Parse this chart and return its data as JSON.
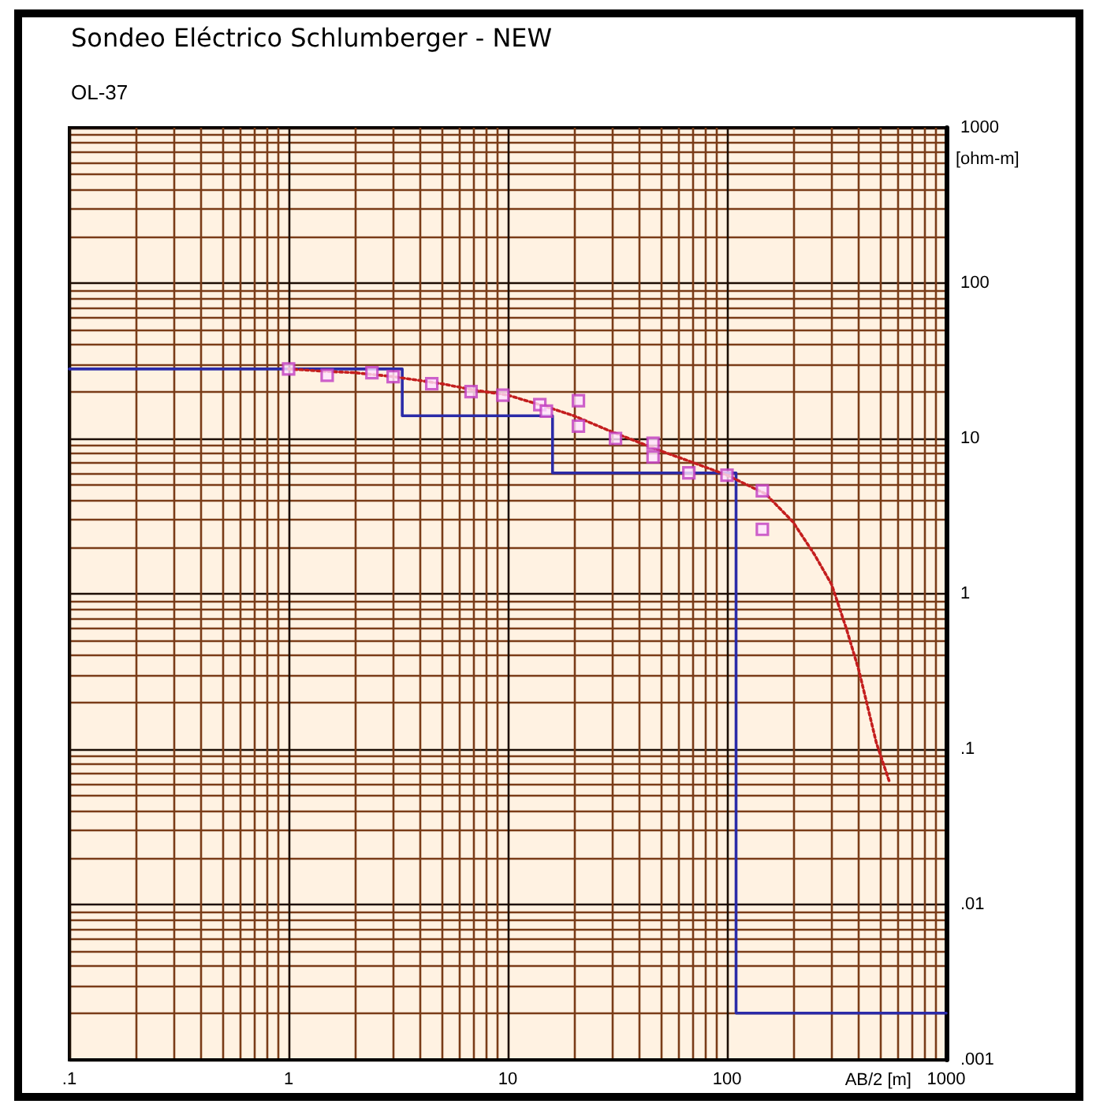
{
  "chart_data": {
    "type": "line",
    "title": "Sondeo Eléctrico Schlumberger - NEW",
    "subtitle": "OL-37",
    "xlabel": "AB/2 [m]",
    "ylabel": "[ohm-m]",
    "log": "xy",
    "grid": true,
    "xlim": [
      0.1,
      1000
    ],
    "ylim": [
      0.001,
      1000
    ],
    "xticks": [
      {
        "value": 0.1,
        "label": ".1"
      },
      {
        "value": 0.2,
        "label": null
      },
      {
        "value": 0.3,
        "label": null
      },
      {
        "value": 0.4,
        "label": null
      },
      {
        "value": 0.5,
        "label": null
      },
      {
        "value": 0.6,
        "label": null
      },
      {
        "value": 0.7,
        "label": null
      },
      {
        "value": 0.8,
        "label": null
      },
      {
        "value": 0.9,
        "label": null
      },
      1,
      {
        "value": 2,
        "label": null
      },
      {
        "value": 3,
        "label": null
      },
      {
        "value": 4,
        "label": null
      },
      {
        "value": 5,
        "label": null
      },
      {
        "value": 6,
        "label": null
      },
      {
        "value": 7,
        "label": null
      },
      {
        "value": 8,
        "label": null
      },
      {
        "value": 9,
        "label": null
      },
      10,
      {
        "value": 20,
        "label": null
      },
      {
        "value": 30,
        "label": null
      },
      {
        "value": 40,
        "label": null
      },
      {
        "value": 50,
        "label": null
      },
      {
        "value": 60,
        "label": null
      },
      {
        "value": 70,
        "label": null
      },
      {
        "value": 80,
        "label": null
      },
      {
        "value": 90,
        "label": null
      },
      100,
      {
        "value": 200,
        "label": null
      },
      {
        "value": 300,
        "label": null
      },
      {
        "value": 400,
        "label": null
      },
      {
        "value": 500,
        "label": null
      },
      {
        "value": 600,
        "label": null
      },
      {
        "value": 700,
        "label": null
      },
      {
        "value": 800,
        "label": null
      },
      {
        "value": 900,
        "label": null
      },
      1000
    ],
    "yticks": [
      {
        "value": 0.001,
        "label": ".001"
      },
      {
        "value": 0.002,
        "label": null
      },
      {
        "value": 0.003,
        "label": null
      },
      {
        "value": 0.004,
        "label": null
      },
      {
        "value": 0.005,
        "label": null
      },
      {
        "value": 0.006,
        "label": null
      },
      {
        "value": 0.007,
        "label": null
      },
      {
        "value": 0.008,
        "label": null
      },
      {
        "value": 0.009,
        "label": null
      },
      {
        "value": 0.01,
        "label": ".01"
      },
      {
        "value": 0.02,
        "label": null
      },
      {
        "value": 0.03,
        "label": null
      },
      {
        "value": 0.04,
        "label": null
      },
      {
        "value": 0.05,
        "label": null
      },
      {
        "value": 0.06,
        "label": null
      },
      {
        "value": 0.07,
        "label": null
      },
      {
        "value": 0.08,
        "label": null
      },
      {
        "value": 0.09,
        "label": null
      },
      {
        "value": 0.1,
        "label": ".1"
      },
      {
        "value": 0.2,
        "label": null
      },
      {
        "value": 0.3,
        "label": null
      },
      {
        "value": 0.4,
        "label": null
      },
      {
        "value": 0.5,
        "label": null
      },
      {
        "value": 0.6,
        "label": null
      },
      {
        "value": 0.7,
        "label": null
      },
      {
        "value": 0.8,
        "label": null
      },
      {
        "value": 0.9,
        "label": null
      },
      1,
      {
        "value": 2,
        "label": null
      },
      {
        "value": 3,
        "label": null
      },
      {
        "value": 4,
        "label": null
      },
      {
        "value": 5,
        "label": null
      },
      {
        "value": 6,
        "label": null
      },
      {
        "value": 7,
        "label": null
      },
      {
        "value": 8,
        "label": null
      },
      {
        "value": 9,
        "label": null
      },
      10,
      {
        "value": 20,
        "label": null
      },
      {
        "value": 30,
        "label": null
      },
      {
        "value": 40,
        "label": null
      },
      {
        "value": 50,
        "label": null
      },
      {
        "value": 60,
        "label": null
      },
      {
        "value": 70,
        "label": null
      },
      {
        "value": 80,
        "label": null
      },
      {
        "value": 90,
        "label": null
      },
      100,
      {
        "value": 200,
        "label": null
      },
      {
        "value": 300,
        "label": null
      },
      {
        "value": 400,
        "label": null
      },
      {
        "value": 500,
        "label": null
      },
      {
        "value": 600,
        "label": null
      },
      {
        "value": 700,
        "label": null
      },
      {
        "value": 800,
        "label": null
      },
      {
        "value": 900,
        "label": null
      },
      1000
    ],
    "series": [
      {
        "type": "step",
        "color": "#2b2ba8",
        "marker": "none",
        "x": [
          0.1,
          3.3,
          16,
          110,
          1000
        ],
        "values": [
          28,
          14,
          6,
          0.002,
          0.002
        ]
      },
      {
        "color": "#c41e1e",
        "marker": "none",
        "line_style": "dotted",
        "x": [
          1,
          1.5,
          2,
          3,
          5,
          7,
          10,
          15,
          20,
          30,
          50,
          70,
          100,
          150,
          200,
          250,
          300,
          350,
          400,
          480,
          550
        ],
        "values": [
          28,
          27,
          26.5,
          25,
          22.5,
          20.5,
          19,
          16,
          14,
          11,
          8.3,
          7,
          5.8,
          4.4,
          2.9,
          1.8,
          1.15,
          0.6,
          0.32,
          0.11,
          0.062
        ]
      },
      {
        "type": "scatter",
        "color": "#c03cc0",
        "marker": "square",
        "x": [
          1,
          1.5,
          2.4,
          3,
          4.5,
          6.8,
          9.5,
          14,
          15,
          21,
          21,
          31,
          46,
          46,
          67,
          100,
          145,
          145
        ],
        "values": [
          28,
          25.5,
          26.5,
          25,
          22.5,
          20,
          19,
          16.5,
          15,
          17.5,
          12,
          10,
          9.3,
          7.6,
          6,
          5.8,
          4.6,
          2.6
        ]
      }
    ]
  }
}
